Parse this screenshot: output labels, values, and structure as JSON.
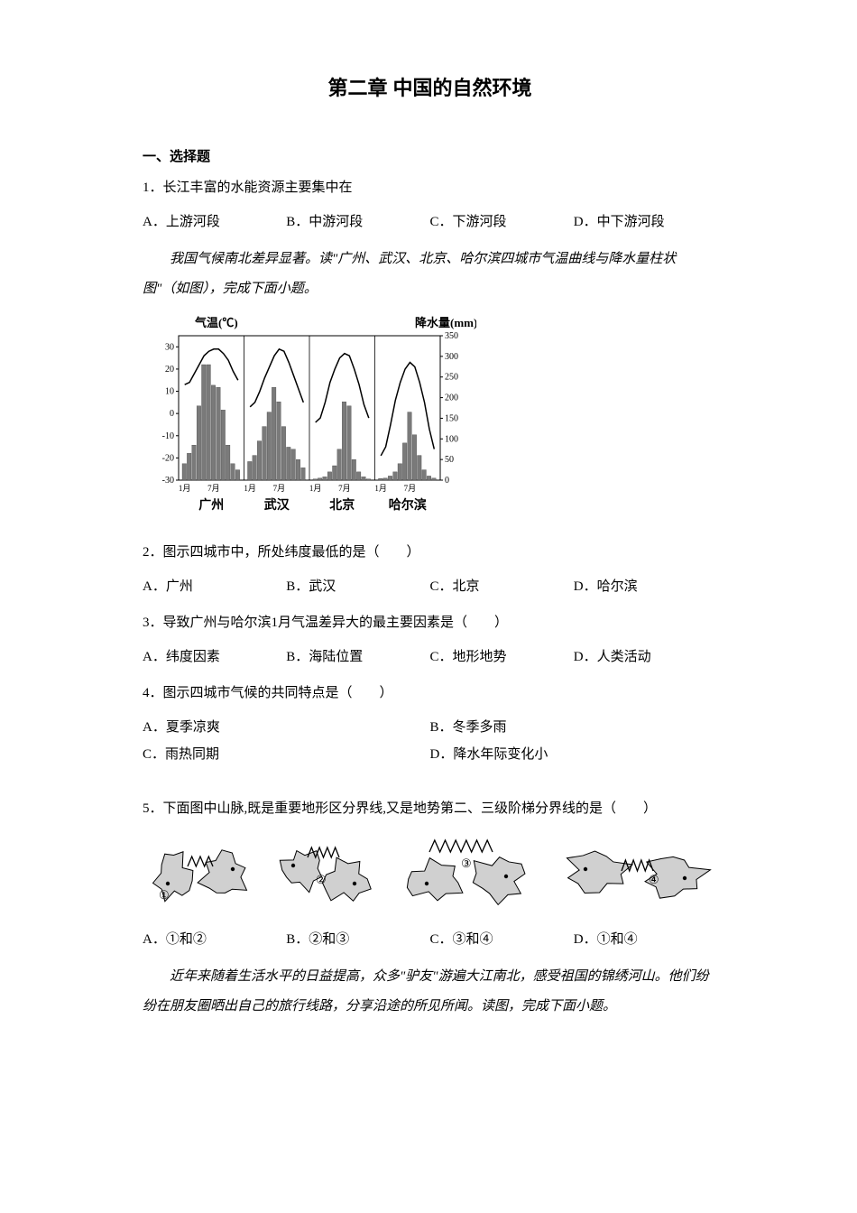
{
  "title": "第二章 中国的自然环境",
  "section_heading": "一、选择题",
  "q1": {
    "text": "1．长江丰富的水能资源主要集中在",
    "opts": {
      "a": "A．上游河段",
      "b": "B．中游河段",
      "c": "C．下游河段",
      "d": "D．中下游河段"
    }
  },
  "passage1": "我国气候南北差异显著。读\"广州、武汉、北京、哈尔滨四城市气温曲线与降水量柱状图\"（如图），完成下面小题。",
  "chart": {
    "temp_label": "气温(℃)",
    "precip_label": "降水量(mm)",
    "temp_ticks": [
      "30",
      "20",
      "10",
      "0",
      "-10",
      "-20",
      "-30"
    ],
    "precip_ticks": [
      "350",
      "300",
      "250",
      "200",
      "150",
      "100",
      "50",
      "0"
    ],
    "cities": [
      "广州",
      "武汉",
      "北京",
      "哈尔滨"
    ],
    "month_labels": [
      "1月",
      "7月"
    ],
    "temp_color": "#000000",
    "bar_color": "#7a7a7a",
    "grid_color": "#cccccc",
    "font_size": 11,
    "city_font_size": 14,
    "guangzhou_temp": [
      13,
      14,
      18,
      22,
      26,
      28,
      29,
      29,
      27,
      24,
      19,
      15
    ],
    "guangzhou_precip": [
      40,
      65,
      85,
      180,
      280,
      280,
      230,
      225,
      170,
      85,
      40,
      25
    ],
    "wuhan_temp": [
      3,
      5,
      10,
      16,
      21,
      26,
      29,
      28,
      23,
      17,
      11,
      5
    ],
    "wuhan_precip": [
      45,
      60,
      95,
      130,
      165,
      225,
      190,
      130,
      80,
      75,
      50,
      30
    ],
    "beijing_temp": [
      -4,
      -2,
      5,
      14,
      20,
      25,
      27,
      26,
      20,
      13,
      4,
      -2
    ],
    "beijing_precip": [
      3,
      5,
      8,
      20,
      35,
      75,
      190,
      180,
      50,
      20,
      8,
      3
    ],
    "harbin_temp": [
      -19,
      -15,
      -5,
      6,
      14,
      20,
      23,
      21,
      14,
      5,
      -7,
      -16
    ],
    "harbin_precip": [
      4,
      5,
      10,
      20,
      40,
      90,
      165,
      110,
      60,
      25,
      10,
      5
    ]
  },
  "q2": {
    "text": "2．图示四城市中，所处纬度最低的是（　　）",
    "opts": {
      "a": "A．广州",
      "b": "B．武汉",
      "c": "C．北京",
      "d": "D．哈尔滨"
    }
  },
  "q3": {
    "text": "3．导致广州与哈尔滨1月气温差异大的最主要因素是（　　）",
    "opts": {
      "a": "A．纬度因素",
      "b": "B．海陆位置",
      "c": "C．地形地势",
      "d": "D．人类活动"
    }
  },
  "q4": {
    "text": "4．图示四城市气候的共同特点是（　　）",
    "opts": {
      "a": "A．夏季凉爽",
      "b": "B．冬季多雨",
      "c": "C．雨热同期",
      "d": "D．降水年际变化小"
    }
  },
  "q5": {
    "text": "5．下面图中山脉,既是重要地形区分界线,又是地势第二、三级阶梯分界线的是（　　）",
    "opts": {
      "a": "A．①和②",
      "b": "B．②和③",
      "c": "C．③和④",
      "d": "D．①和④"
    }
  },
  "maps": {
    "labels": [
      "①",
      "②",
      "③",
      "④"
    ],
    "fill_color": "#d0d0d0",
    "stroke_color": "#000000",
    "mountain_color": "#555555"
  },
  "passage2": "近年来随着生活水平的日益提高，众多\"驴友\"游遍大江南北，感受祖国的锦绣河山。他们纷纷在朋友圈晒出自己的旅行线路，分享沿途的所见所闻。读图，完成下面小题。"
}
